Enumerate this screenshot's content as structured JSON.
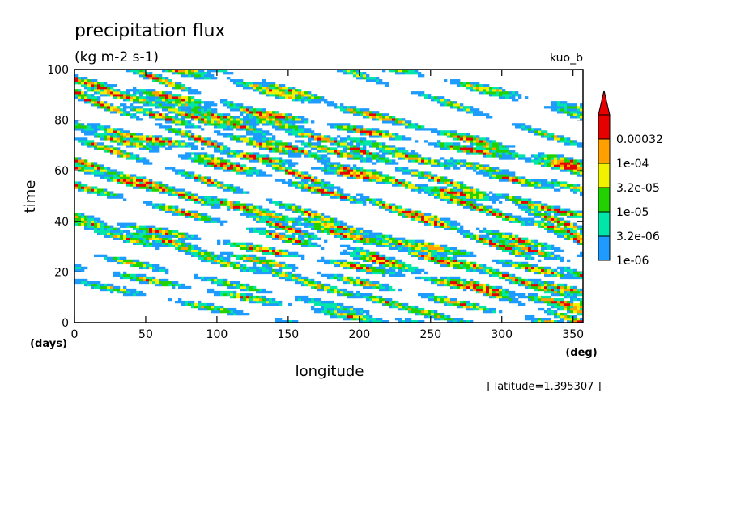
{
  "chart_data": {
    "type": "heatmap",
    "title": "precipitation flux",
    "subtitle": "(kg m-2 s-1)",
    "experiment": "kuo_b",
    "xlabel": "longitude",
    "x_unit": "(deg)",
    "ylabel": "time",
    "y_unit": "(days)",
    "xlim": [
      0,
      357
    ],
    "ylim": [
      0,
      100
    ],
    "x_ticks": [
      "0",
      "50",
      "100",
      "150",
      "200",
      "250",
      "300",
      "350"
    ],
    "y_ticks": [
      "0",
      "20",
      "40",
      "60",
      "80",
      "100"
    ],
    "footer": "[ latitude=1.395307 ]",
    "colorbar": {
      "labels": [
        "1e-06",
        "3.2e-06",
        "1e-05",
        "3.2e-05",
        "1e-04",
        "0.00032"
      ],
      "levels": [
        1e-06,
        3.2e-06,
        1e-05,
        3.2e-05,
        0.0001,
        0.00032
      ],
      "colors": [
        "#1e9bff",
        "#00e5a8",
        "#22d200",
        "#f2f200",
        "#ff9f00",
        "#e60000"
      ]
    },
    "bands": [
      {
        "x0": 0,
        "y0": 96,
        "slope": -0.1,
        "strength": 0.95
      },
      {
        "x0": 30,
        "y0": 90,
        "slope": -0.12,
        "strength": 0.8
      },
      {
        "x0": 60,
        "y0": 86,
        "slope": -0.15,
        "strength": 0.75
      },
      {
        "x0": 0,
        "y0": 78,
        "slope": -0.1,
        "strength": 0.9
      },
      {
        "x0": 100,
        "y0": 96,
        "slope": -0.13,
        "strength": 0.7
      },
      {
        "x0": 150,
        "y0": 92,
        "slope": -0.16,
        "strength": 0.65
      },
      {
        "x0": 200,
        "y0": 98,
        "slope": -0.18,
        "strength": 0.6
      },
      {
        "x0": 260,
        "y0": 96,
        "slope": -0.12,
        "strength": 0.65
      },
      {
        "x0": 300,
        "y0": 90,
        "slope": -0.15,
        "strength": 0.6
      },
      {
        "x0": 60,
        "y0": 68,
        "slope": -0.14,
        "strength": 0.8
      },
      {
        "x0": 120,
        "y0": 72,
        "slope": -0.16,
        "strength": 0.85
      },
      {
        "x0": 180,
        "y0": 64,
        "slope": -0.18,
        "strength": 0.9
      },
      {
        "x0": 240,
        "y0": 60,
        "slope": -0.2,
        "strength": 0.85
      },
      {
        "x0": 280,
        "y0": 72,
        "slope": -0.14,
        "strength": 0.85
      },
      {
        "x0": 0,
        "y0": 40,
        "slope": -0.12,
        "strength": 0.75
      },
      {
        "x0": 60,
        "y0": 30,
        "slope": -0.14,
        "strength": 0.7
      },
      {
        "x0": 100,
        "y0": 48,
        "slope": -0.15,
        "strength": 0.9
      },
      {
        "x0": 130,
        "y0": 36,
        "slope": -0.14,
        "strength": 0.85
      },
      {
        "x0": 160,
        "y0": 44,
        "slope": -0.18,
        "strength": 0.8
      },
      {
        "x0": 210,
        "y0": 48,
        "slope": -0.2,
        "strength": 0.9
      },
      {
        "x0": 250,
        "y0": 40,
        "slope": -0.16,
        "strength": 0.9
      },
      {
        "x0": 0,
        "y0": 22,
        "slope": -0.1,
        "strength": 0.7
      },
      {
        "x0": 40,
        "y0": 12,
        "slope": -0.11,
        "strength": 0.6
      },
      {
        "x0": 140,
        "y0": 20,
        "slope": -0.15,
        "strength": 0.65
      },
      {
        "x0": 190,
        "y0": 30,
        "slope": -0.18,
        "strength": 0.85
      },
      {
        "x0": 240,
        "y0": 28,
        "slope": -0.14,
        "strength": 0.75
      },
      {
        "x0": 300,
        "y0": 24,
        "slope": -0.12,
        "strength": 0.85
      },
      {
        "x0": 320,
        "y0": 10,
        "slope": -0.1,
        "strength": 0.9
      },
      {
        "x0": 170,
        "y0": 8,
        "slope": -0.12,
        "strength": 0.6
      },
      {
        "x0": 330,
        "y0": 56,
        "slope": -0.12,
        "strength": 0.6
      }
    ]
  }
}
